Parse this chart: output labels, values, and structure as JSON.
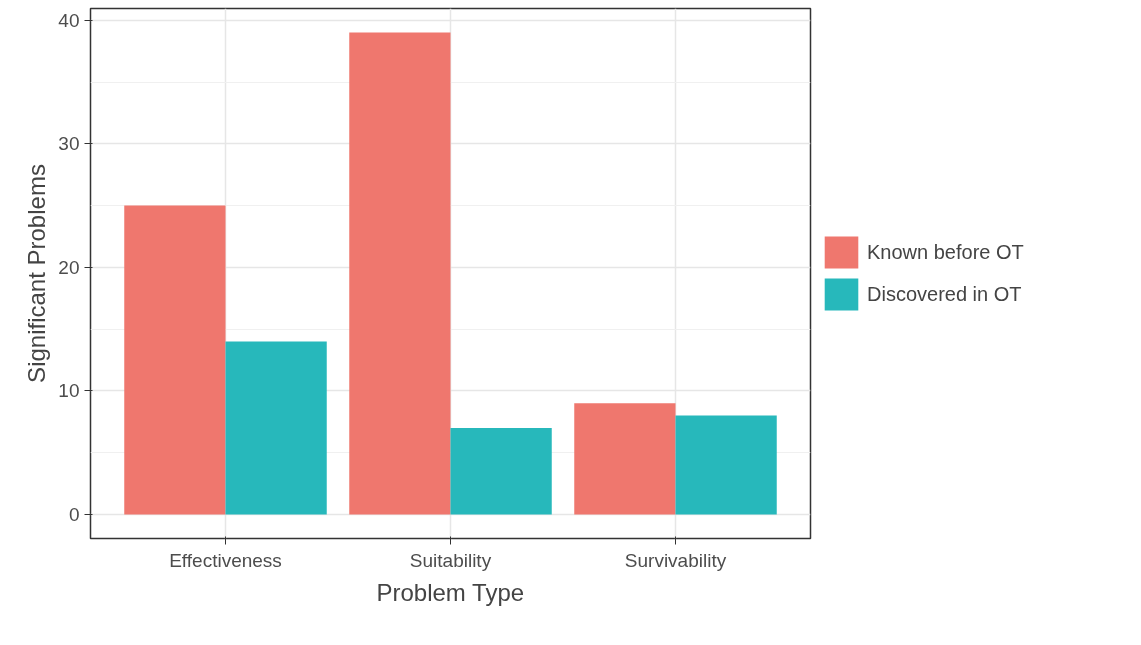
{
  "chart_data": {
    "type": "bar",
    "xlabel": "Problem Type",
    "ylabel": "Significant Problems",
    "categories": [
      "Effectiveness",
      "Suitability",
      "Survivability"
    ],
    "series": [
      {
        "name": "Known before OT",
        "color": "#ef776e",
        "values": [
          25,
          39,
          9
        ]
      },
      {
        "name": "Discovered in OT",
        "color": "#27b8bb",
        "values": [
          14,
          7,
          8
        ]
      }
    ],
    "ylim": [
      -1.95,
      40.95
    ],
    "yticks": [
      0,
      10,
      20,
      30,
      40
    ],
    "grid": true,
    "legend": "right"
  }
}
